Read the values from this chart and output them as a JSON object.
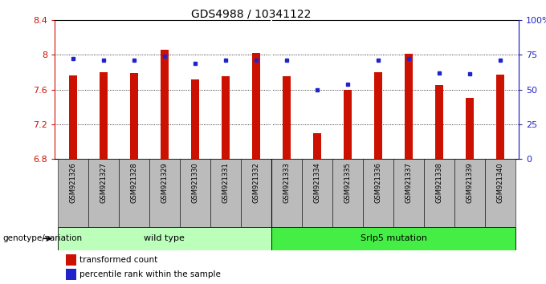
{
  "title": "GDS4988 / 10341122",
  "samples": [
    "GSM921326",
    "GSM921327",
    "GSM921328",
    "GSM921329",
    "GSM921330",
    "GSM921331",
    "GSM921332",
    "GSM921333",
    "GSM921334",
    "GSM921335",
    "GSM921336",
    "GSM921337",
    "GSM921338",
    "GSM921339",
    "GSM921340"
  ],
  "red_values": [
    7.76,
    7.8,
    7.79,
    8.06,
    7.72,
    7.75,
    8.02,
    7.75,
    7.1,
    7.6,
    7.8,
    8.01,
    7.65,
    7.5,
    7.77
  ],
  "blue_values": [
    72,
    71,
    71,
    74,
    69,
    71,
    71,
    71,
    50,
    54,
    71,
    72,
    62,
    61,
    71
  ],
  "y_min": 6.8,
  "y_max": 8.4,
  "y_ticks_left": [
    6.8,
    7.2,
    7.6,
    8.0,
    8.4
  ],
  "y_ticks_right": [
    0,
    25,
    50,
    75,
    100
  ],
  "red_color": "#CC1100",
  "blue_color": "#2222CC",
  "bar_width": 0.25,
  "group1_label": "wild type",
  "group2_label": "Srlp5 mutation",
  "group1_count": 7,
  "group2_count": 8,
  "legend_red": "transformed count",
  "legend_blue": "percentile rank within the sample",
  "genotype_label": "genotype/variation",
  "group1_color": "#BBFFBB",
  "group2_color": "#44EE44",
  "tick_bg_color": "#BBBBBB",
  "fig_width": 6.8,
  "fig_height": 3.54,
  "dpi": 100
}
